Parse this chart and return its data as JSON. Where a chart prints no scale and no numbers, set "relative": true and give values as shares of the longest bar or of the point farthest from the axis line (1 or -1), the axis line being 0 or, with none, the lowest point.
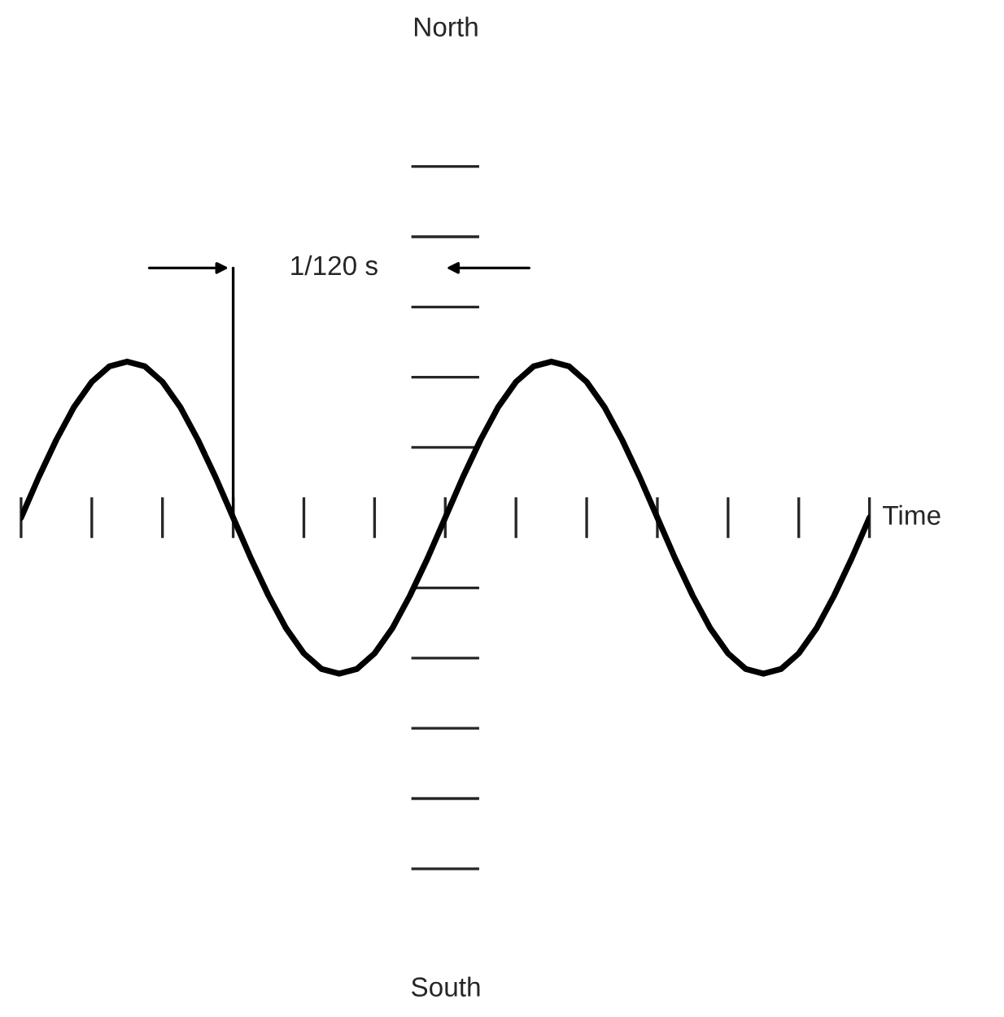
{
  "chart_data": {
    "type": "line",
    "relative": true,
    "xlabel": "Time",
    "categories": [
      null,
      null,
      null,
      null,
      null,
      null,
      null,
      null,
      null,
      null,
      null,
      null,
      null,
      null,
      null,
      null,
      null,
      null,
      null,
      null,
      null,
      null,
      null,
      null,
      null,
      null,
      null,
      null,
      null,
      null,
      null,
      null,
      null,
      null,
      null,
      null,
      null,
      null,
      null,
      null,
      null,
      null,
      null,
      null,
      null,
      null,
      null,
      null,
      null
    ],
    "series": [
      {
        "color": "#000000",
        "values": [
          0,
          0.26,
          0.5,
          0.71,
          0.87,
          0.97,
          1,
          0.97,
          0.87,
          0.71,
          0.5,
          0.26,
          0,
          -0.26,
          -0.5,
          -0.71,
          -0.87,
          -0.97,
          -1,
          -0.97,
          -0.87,
          -0.71,
          -0.5,
          -0.26,
          0,
          0.26,
          0.5,
          0.71,
          0.87,
          0.97,
          1,
          0.97,
          0.87,
          0.71,
          0.5,
          0.26,
          0,
          -0.26,
          -0.5,
          -0.71,
          -0.87,
          -0.97,
          -1,
          -0.97,
          -0.87,
          -0.71,
          -0.5,
          -0.26,
          0
        ]
      }
    ],
    "annotations": [
      "North",
      "South",
      "1/120 s"
    ],
    "grid": false,
    "legend": false,
    "marker": "none",
    "line_style": "solid"
  }
}
